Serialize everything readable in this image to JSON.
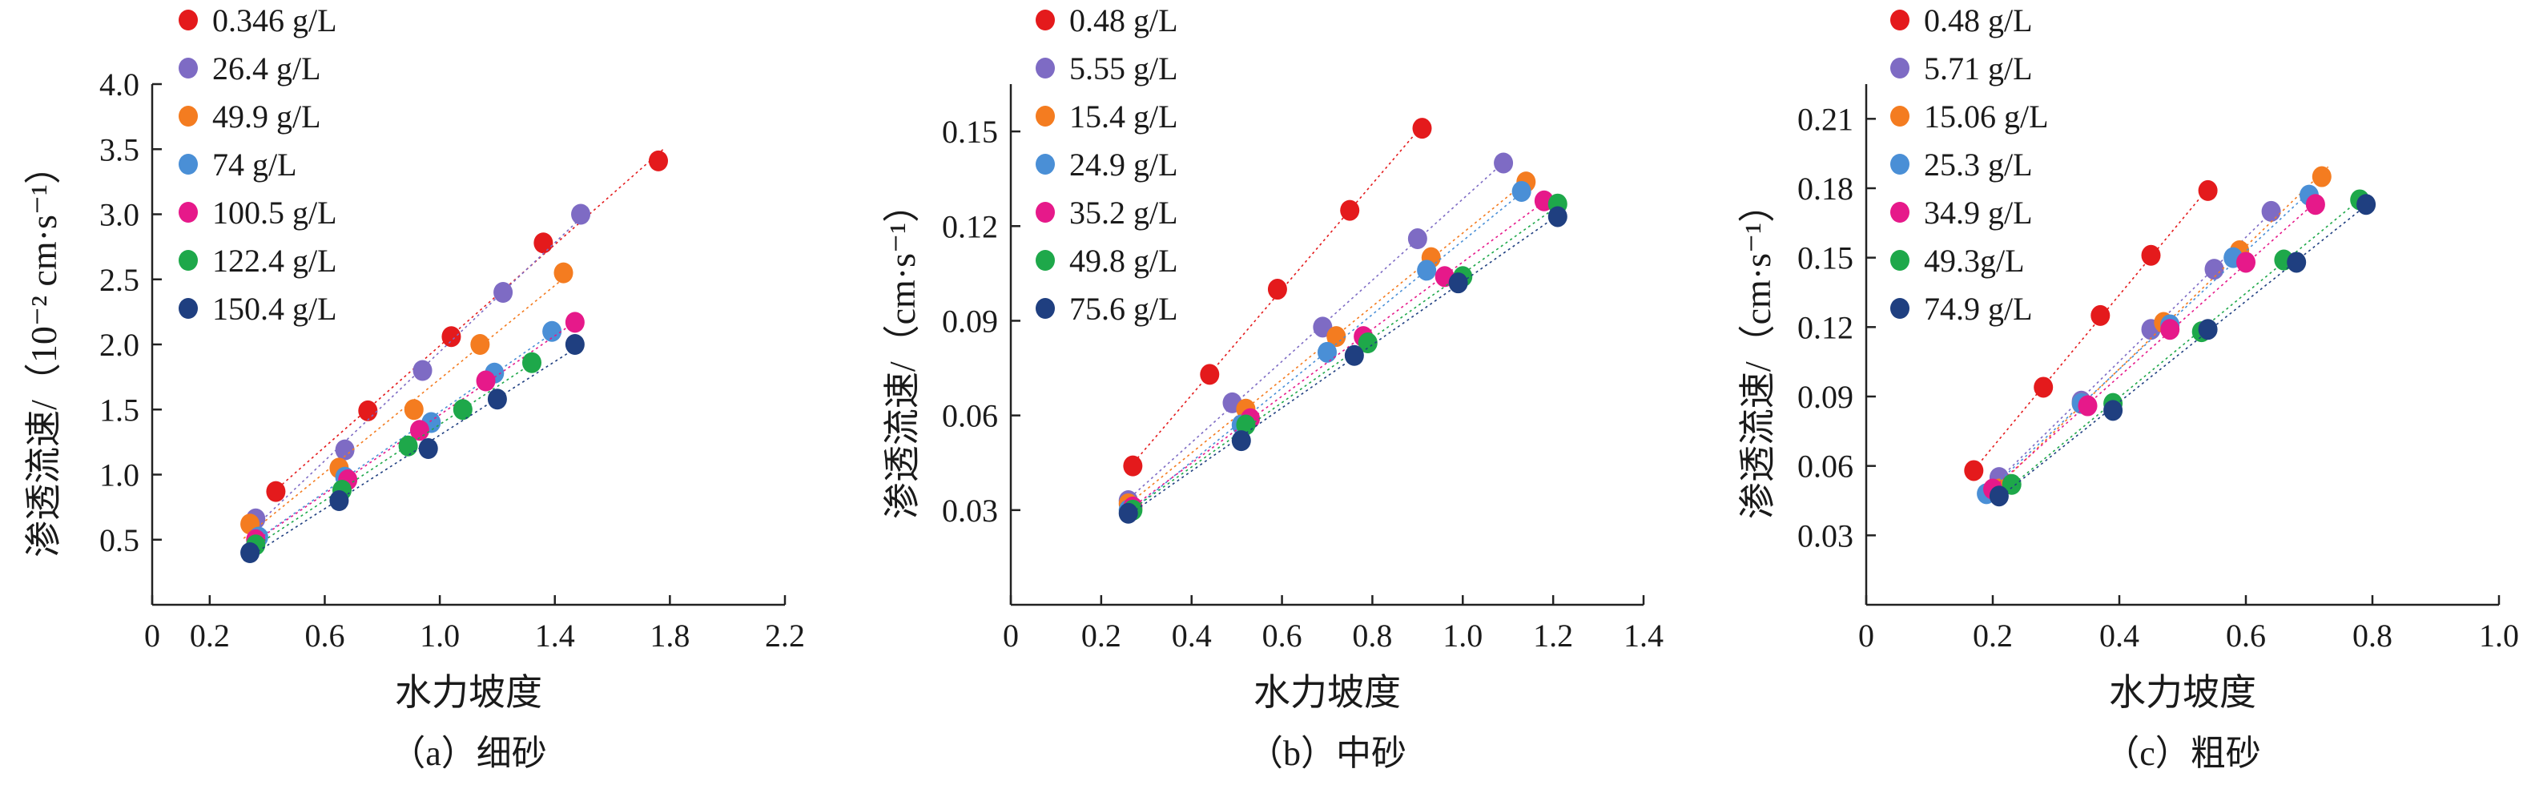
{
  "chart_data": [
    {
      "type": "scatter",
      "panel": "a",
      "caption": "（a）细砂",
      "xlabel": "水力坡度",
      "ylabel": "渗透流速/（10⁻² cm·s⁻¹）",
      "xticks": [
        "0",
        "0.2",
        "0.6",
        "1.0",
        "1.4",
        "1.8",
        "2.2"
      ],
      "yticks": [
        "0.5",
        "1.0",
        "1.5",
        "2.0",
        "2.5",
        "3.0",
        "3.5",
        "4.0"
      ],
      "xlim": [
        0,
        2.2
      ],
      "ylim": [
        0,
        4.0
      ],
      "fit_lines": true,
      "series": [
        {
          "name": "0.346 g/L",
          "color": "#e41a1c",
          "x": [
            0.43,
            0.75,
            1.04,
            1.36,
            1.76
          ],
          "y": [
            0.87,
            1.49,
            2.06,
            2.78,
            3.41
          ]
        },
        {
          "name": "26.4 g/L",
          "color": "#7e6bc4",
          "x": [
            0.36,
            0.67,
            0.94,
            1.22,
            1.49
          ],
          "y": [
            0.66,
            1.19,
            1.8,
            2.4,
            3.0
          ]
        },
        {
          "name": "49.9 g/L",
          "color": "#f47c20",
          "x": [
            0.34,
            0.65,
            0.91,
            1.14,
            1.43
          ],
          "y": [
            0.62,
            1.05,
            1.5,
            2.0,
            2.55
          ]
        },
        {
          "name": "74 g/L",
          "color": "#4a8fd6",
          "x": [
            0.37,
            0.67,
            0.97,
            1.19,
            1.39
          ],
          "y": [
            0.52,
            0.98,
            1.4,
            1.78,
            2.1
          ]
        },
        {
          "name": "100.5 g/L",
          "color": "#e6198a",
          "x": [
            0.36,
            0.68,
            0.93,
            1.16,
            1.47
          ],
          "y": [
            0.5,
            0.96,
            1.34,
            1.72,
            2.17
          ]
        },
        {
          "name": "122.4 g/L",
          "color": "#1ea84a",
          "x": [
            0.36,
            0.66,
            0.89,
            1.08,
            1.32
          ],
          "y": [
            0.46,
            0.88,
            1.22,
            1.5,
            1.86
          ]
        },
        {
          "name": "150.4 g/L",
          "color": "#1f3f80",
          "x": [
            0.34,
            0.65,
            0.96,
            1.2,
            1.47
          ],
          "y": [
            0.4,
            0.8,
            1.2,
            1.58,
            2.0
          ]
        }
      ]
    },
    {
      "type": "scatter",
      "panel": "b",
      "caption": "（b）中砂",
      "xlabel": "水力坡度",
      "ylabel": "渗透流速/（cm·s⁻¹）",
      "xticks": [
        "0",
        "0.2",
        "0.4",
        "0.6",
        "0.8",
        "1.0",
        "1.2",
        "1.4"
      ],
      "yticks": [
        "0.03",
        "0.06",
        "0.09",
        "0.12",
        "0.15"
      ],
      "xlim": [
        0,
        1.4
      ],
      "ylim": [
        0,
        0.165
      ],
      "fit_lines": true,
      "series": [
        {
          "name": "0.48 g/L",
          "color": "#e41a1c",
          "x": [
            0.27,
            0.44,
            0.59,
            0.75,
            0.91
          ],
          "y": [
            0.044,
            0.073,
            0.1,
            0.125,
            0.151
          ]
        },
        {
          "name": "5.55 g/L",
          "color": "#7e6bc4",
          "x": [
            0.26,
            0.49,
            0.69,
            0.9,
            1.09
          ],
          "y": [
            0.033,
            0.064,
            0.088,
            0.116,
            0.14
          ]
        },
        {
          "name": "15.4 g/L",
          "color": "#f47c20",
          "x": [
            0.26,
            0.52,
            0.72,
            0.93,
            1.14
          ],
          "y": [
            0.032,
            0.062,
            0.085,
            0.11,
            0.134
          ]
        },
        {
          "name": "24.9 g/L",
          "color": "#4a8fd6",
          "x": [
            0.26,
            0.51,
            0.7,
            0.92,
            1.13
          ],
          "y": [
            0.03,
            0.057,
            0.08,
            0.106,
            0.131
          ]
        },
        {
          "name": "35.2 g/L",
          "color": "#e6198a",
          "x": [
            0.27,
            0.53,
            0.78,
            0.96,
            1.18
          ],
          "y": [
            0.031,
            0.059,
            0.085,
            0.104,
            0.128
          ]
        },
        {
          "name": "49.8 g/L",
          "color": "#1ea84a",
          "x": [
            0.27,
            0.52,
            0.79,
            1.0,
            1.21
          ],
          "y": [
            0.03,
            0.057,
            0.083,
            0.104,
            0.127
          ]
        },
        {
          "name": "75.6 g/L",
          "color": "#1f3f80",
          "x": [
            0.26,
            0.51,
            0.76,
            0.99,
            1.21
          ],
          "y": [
            0.029,
            0.052,
            0.079,
            0.102,
            0.123
          ]
        }
      ]
    },
    {
      "type": "scatter",
      "panel": "c",
      "caption": "（c）粗砂",
      "xlabel": "水力坡度",
      "ylabel": "渗透流速/（cm·s⁻¹）",
      "xticks": [
        "0",
        "0.2",
        "0.4",
        "0.6",
        "0.8",
        "1.0"
      ],
      "yticks": [
        "0.03",
        "0.06",
        "0.09",
        "0.12",
        "0.15",
        "0.18",
        "0.21"
      ],
      "xlim": [
        0,
        1.0
      ],
      "ylim": [
        0,
        0.225
      ],
      "fit_lines": true,
      "series": [
        {
          "name": "0.48 g/L",
          "color": "#e41a1c",
          "x": [
            0.17,
            0.28,
            0.37,
            0.45,
            0.54
          ],
          "y": [
            0.058,
            0.094,
            0.125,
            0.151,
            0.179
          ]
        },
        {
          "name": "5.71 g/L",
          "color": "#7e6bc4",
          "x": [
            0.21,
            0.34,
            0.45,
            0.55,
            0.64
          ],
          "y": [
            0.055,
            0.088,
            0.119,
            0.145,
            0.17
          ]
        },
        {
          "name": "15.06 g/L",
          "color": "#f47c20",
          "x": [
            0.21,
            0.34,
            0.47,
            0.59,
            0.72
          ],
          "y": [
            0.05,
            0.087,
            0.122,
            0.153,
            0.185
          ]
        },
        {
          "name": "25.3 g/L",
          "color": "#4a8fd6",
          "x": [
            0.19,
            0.34,
            0.48,
            0.58,
            0.7
          ],
          "y": [
            0.048,
            0.087,
            0.121,
            0.15,
            0.177
          ]
        },
        {
          "name": "34.9 g/L",
          "color": "#e6198a",
          "x": [
            0.2,
            0.35,
            0.48,
            0.6,
            0.71
          ],
          "y": [
            0.05,
            0.086,
            0.119,
            0.148,
            0.173
          ]
        },
        {
          "name": "49.3g/L",
          "color": "#1ea84a",
          "x": [
            0.23,
            0.39,
            0.53,
            0.66,
            0.78
          ],
          "y": [
            0.052,
            0.087,
            0.118,
            0.149,
            0.175
          ]
        },
        {
          "name": "74.9 g/L",
          "color": "#1f3f80",
          "x": [
            0.21,
            0.39,
            0.54,
            0.68,
            0.79
          ],
          "y": [
            0.047,
            0.084,
            0.119,
            0.148,
            0.173
          ]
        }
      ]
    }
  ]
}
